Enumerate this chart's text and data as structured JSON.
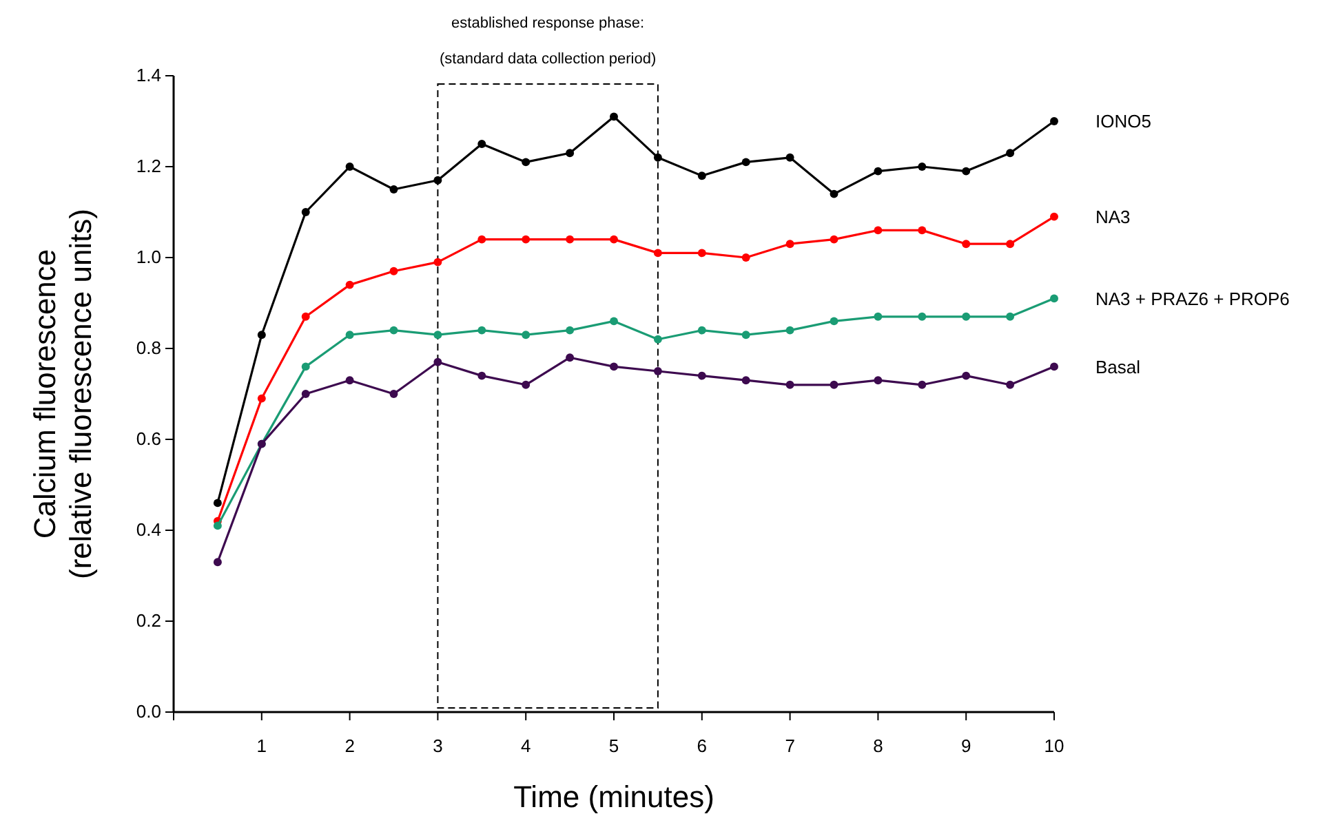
{
  "chart_data": {
    "type": "line",
    "xlabel": "Time (minutes)",
    "ylabel": "Calcium fluorescence\n(relative fluorescence units)",
    "x": [
      0.5,
      1,
      1.5,
      2,
      2.5,
      3,
      3.5,
      4,
      4.5,
      5,
      5.5,
      6,
      6.5,
      7,
      7.5,
      8,
      8.5,
      9,
      9.5,
      10
    ],
    "series": [
      {
        "name": "IONO5",
        "color": "#000000",
        "values": [
          0.46,
          0.83,
          1.1,
          1.2,
          1.15,
          1.17,
          1.25,
          1.21,
          1.23,
          1.31,
          1.22,
          1.18,
          1.21,
          1.22,
          1.14,
          1.19,
          1.2,
          1.19,
          1.23,
          1.3
        ]
      },
      {
        "name": "NA3",
        "color": "#ff0000",
        "values": [
          0.42,
          0.69,
          0.87,
          0.94,
          0.97,
          0.99,
          1.04,
          1.04,
          1.04,
          1.04,
          1.01,
          1.01,
          1.0,
          1.03,
          1.04,
          1.06,
          1.06,
          1.03,
          1.03,
          1.09
        ]
      },
      {
        "name": "NA3 + PRAZ6 + PROP6",
        "color": "#1a9c74",
        "values": [
          0.41,
          0.59,
          0.76,
          0.83,
          0.84,
          0.83,
          0.84,
          0.83,
          0.84,
          0.86,
          0.82,
          0.84,
          0.83,
          0.84,
          0.86,
          0.87,
          0.87,
          0.87,
          0.87,
          0.91
        ]
      },
      {
        "name": "Basal",
        "color": "#3d0a4f",
        "values": [
          0.33,
          0.59,
          0.7,
          0.73,
          0.7,
          0.77,
          0.74,
          0.72,
          0.78,
          0.76,
          0.75,
          0.74,
          0.73,
          0.72,
          0.72,
          0.73,
          0.72,
          0.74,
          0.72,
          0.76
        ]
      }
    ],
    "xlim": [
      0,
      10
    ],
    "xticks": [
      {
        "value": 0,
        "label": null
      },
      1,
      2,
      3,
      4,
      5,
      6,
      7,
      8,
      9,
      10
    ],
    "ylim": [
      0,
      1.4
    ],
    "yticks": [
      {
        "value": 0,
        "label": "0.0"
      },
      {
        "value": 0.2,
        "label": "0.2"
      },
      {
        "value": 0.4,
        "label": "0.4"
      },
      {
        "value": 0.6,
        "label": "0.6"
      },
      {
        "value": 0.8,
        "label": "0.8"
      },
      {
        "value": 1,
        "label": "1.0"
      },
      {
        "value": 1.2,
        "label": "1.2"
      },
      {
        "value": 1.4,
        "label": "1.4"
      }
    ],
    "bands": [
      {
        "axis": "x",
        "from": 3,
        "to": 5.5,
        "label": "established response phase:\n(standard data collection period)"
      }
    ],
    "marker": "circle",
    "line_style": "solid",
    "grid": false
  }
}
